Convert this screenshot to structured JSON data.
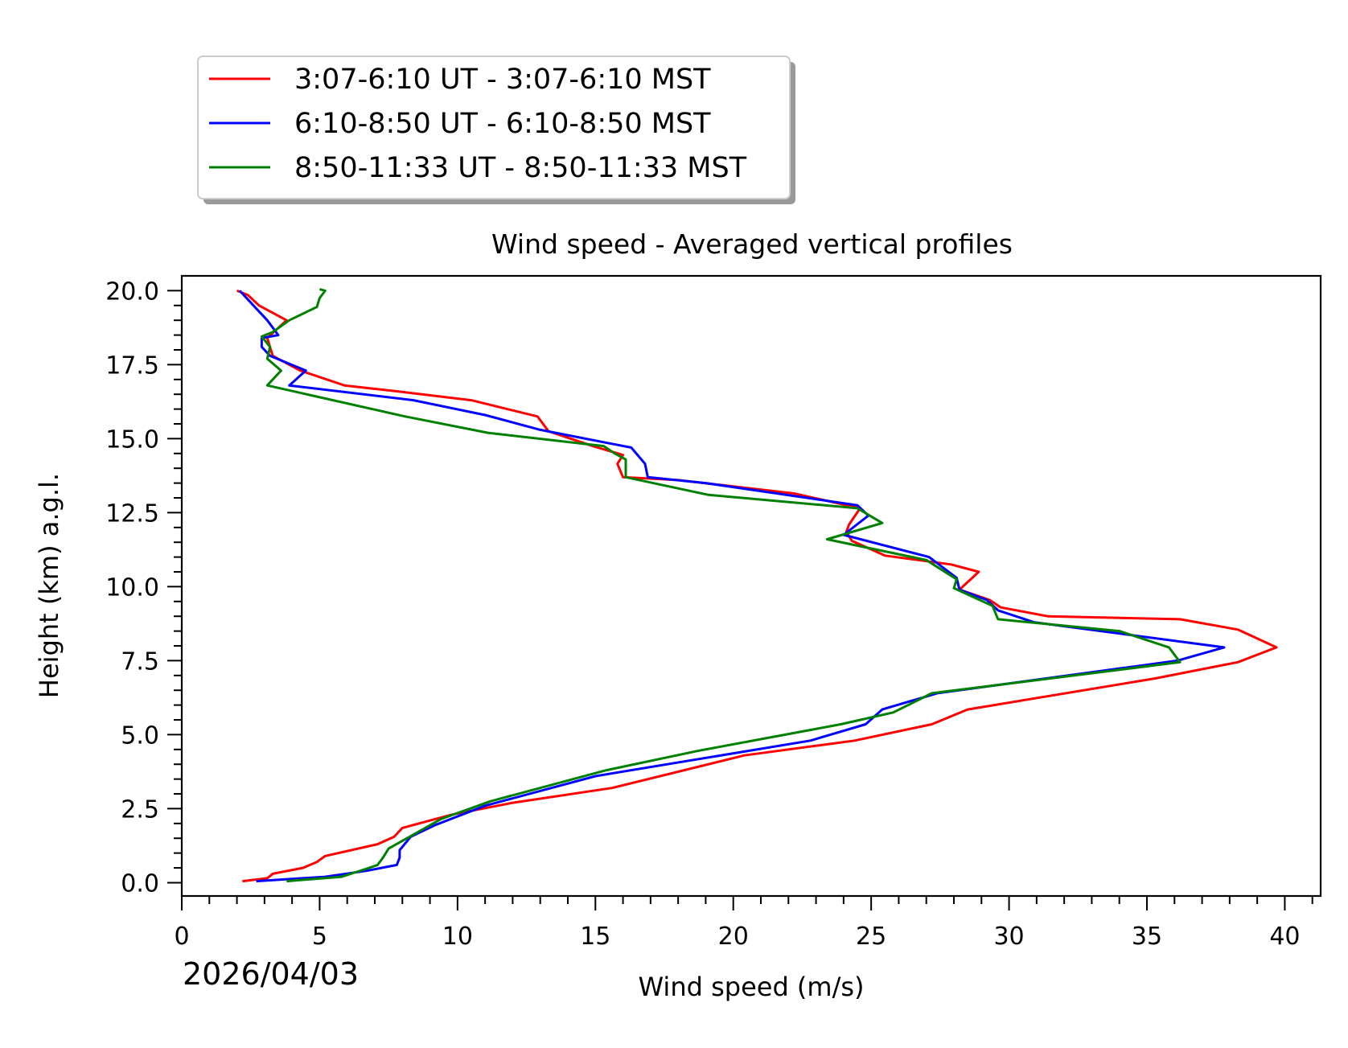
{
  "chart_data": {
    "type": "line",
    "title": "Wind speed - Averaged vertical profiles",
    "xlabel": "Wind speed (m/s)",
    "ylabel": "Height (km) a.g.l.",
    "date": "2026/04/03",
    "xlim": [
      0,
      41.3
    ],
    "ylim": [
      -0.45,
      20.5
    ],
    "xticks": [
      0,
      5,
      10,
      15,
      20,
      25,
      30,
      35,
      40
    ],
    "yticks": [
      0.0,
      2.5,
      5.0,
      7.5,
      10.0,
      12.5,
      15.0,
      17.5,
      20.0
    ],
    "xtick_labels": [
      "0",
      "5",
      "10",
      "15",
      "20",
      "25",
      "30",
      "35",
      "40"
    ],
    "ytick_labels": [
      "0.0",
      "2.5",
      "5.0",
      "7.5",
      "10.0",
      "12.5",
      "15.0",
      "17.5",
      "20.0"
    ],
    "grid": false,
    "legend_position": "above-left",
    "series": [
      {
        "name": "3:07-6:10 UT - 3:07-6:10 MST",
        "color": "#ff0000",
        "x": [
          2.2,
          3.1,
          3.3,
          4.4,
          4.9,
          5.2,
          7.1,
          7.7,
          8.0,
          9.2,
          9.8,
          12.0,
          15.6,
          20.4,
          24.4,
          27.2,
          28.5,
          35.3,
          38.3,
          39.7,
          38.3,
          36.2,
          31.4,
          29.7,
          29.3,
          28.2,
          28.9,
          27.9,
          25.5,
          24.3,
          24.1,
          24.2,
          24.6,
          22.2,
          18.0,
          16.0,
          15.8,
          16.0,
          14.9,
          13.3,
          12.9,
          10.5,
          7.8,
          5.9,
          4.3,
          3.3,
          3.2,
          3.1,
          3.8,
          2.8,
          2.4,
          2.0
        ],
        "y": [
          0.05,
          0.15,
          0.3,
          0.5,
          0.7,
          0.9,
          1.3,
          1.55,
          1.85,
          2.15,
          2.3,
          2.7,
          3.2,
          4.3,
          4.8,
          5.35,
          5.85,
          6.9,
          7.45,
          7.95,
          8.55,
          8.9,
          9.0,
          9.3,
          9.55,
          9.9,
          10.5,
          10.75,
          11.05,
          11.55,
          11.85,
          12.1,
          12.65,
          13.15,
          13.6,
          13.7,
          14.15,
          14.45,
          14.75,
          15.25,
          15.75,
          16.3,
          16.6,
          16.8,
          17.3,
          17.8,
          18.1,
          18.4,
          19.0,
          19.5,
          19.85,
          20.0
        ]
      },
      {
        "name": "6:10-8:50 UT - 6:10-8:50 MST",
        "color": "#0000ff",
        "x": [
          2.7,
          5.2,
          6.7,
          7.8,
          7.9,
          7.9,
          8.3,
          9.2,
          11.0,
          15.0,
          22.8,
          24.8,
          25.4,
          27.4,
          36.1,
          37.8,
          30.9,
          29.6,
          29.2,
          28.2,
          28.1,
          27.1,
          24.0,
          24.9,
          24.5,
          19.0,
          16.9,
          16.8,
          16.3,
          13.0,
          11.0,
          8.4,
          3.9,
          4.5,
          3.2,
          2.9,
          2.9,
          3.5,
          3.1,
          2.6,
          2.1
        ],
        "y": [
          0.05,
          0.2,
          0.4,
          0.6,
          0.85,
          1.1,
          1.55,
          1.95,
          2.6,
          3.6,
          4.8,
          5.35,
          5.85,
          6.4,
          7.5,
          7.95,
          8.8,
          9.2,
          9.55,
          9.9,
          10.3,
          11.0,
          11.75,
          12.4,
          12.75,
          13.5,
          13.7,
          14.15,
          14.7,
          15.3,
          15.8,
          16.3,
          16.8,
          17.3,
          17.8,
          18.1,
          18.4,
          18.5,
          19.0,
          19.5,
          20.0
        ]
      },
      {
        "name": "8:50-11:33 UT - 8:50-11:33 MST",
        "color": "#008000",
        "x": [
          3.8,
          5.8,
          6.8,
          7.1,
          7.3,
          7.5,
          9.4,
          11.2,
          15.4,
          18.7,
          23.9,
          25.8,
          27.2,
          36.2,
          35.8,
          34.0,
          29.6,
          29.4,
          28.0,
          28.1,
          27.0,
          23.4,
          25.4,
          24.5,
          19.1,
          16.1,
          16.1,
          15.7,
          15.3,
          11.1,
          8.1,
          3.1,
          3.6,
          3.1,
          3.2,
          2.9,
          3.3,
          3.9,
          4.9,
          5.0,
          5.2,
          5.0
        ],
        "y": [
          0.05,
          0.2,
          0.5,
          0.6,
          0.85,
          1.15,
          2.15,
          2.75,
          3.8,
          4.45,
          5.35,
          5.75,
          6.4,
          7.45,
          7.95,
          8.5,
          8.9,
          9.35,
          9.95,
          10.25,
          10.9,
          11.6,
          12.15,
          12.65,
          13.1,
          13.7,
          14.3,
          14.5,
          14.75,
          15.2,
          15.75,
          16.8,
          17.3,
          17.7,
          18.1,
          18.45,
          18.6,
          19.0,
          19.45,
          19.75,
          20.0,
          20.05
        ]
      }
    ]
  }
}
